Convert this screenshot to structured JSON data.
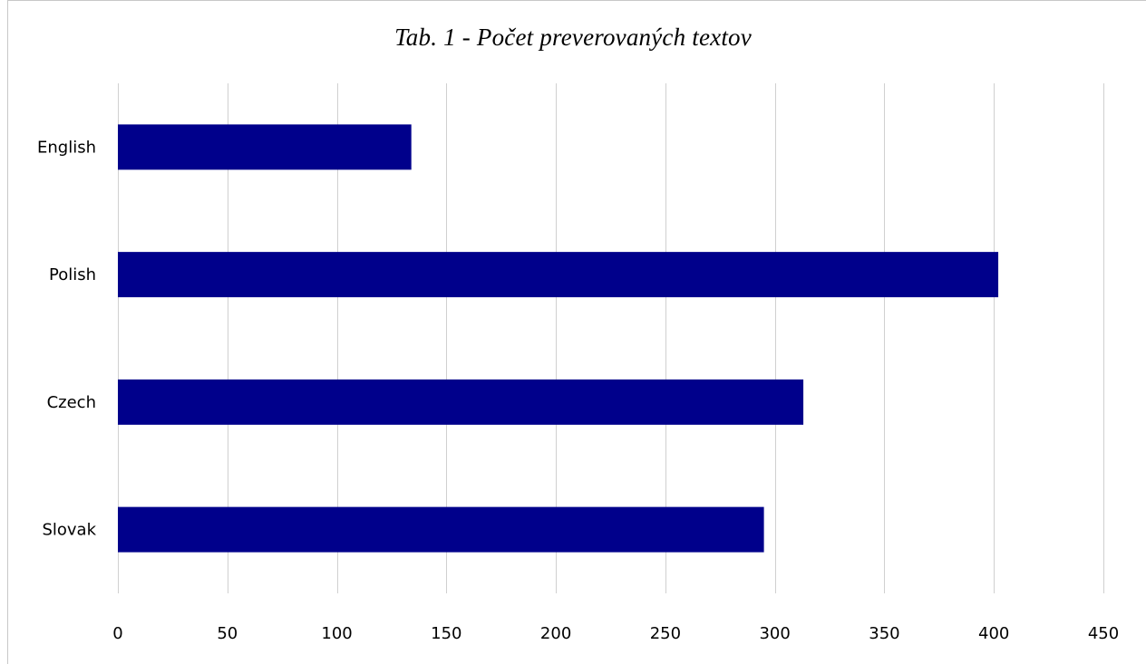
{
  "chart_data": {
    "type": "bar",
    "orientation": "horizontal",
    "title": "Tab. 1 - Počet preverovaných textov",
    "categories": [
      "English",
      "Polish",
      "Czech",
      "Slovak"
    ],
    "values": [
      134,
      402,
      313,
      295
    ],
    "xlabel": "",
    "ylabel": "",
    "xlim": [
      0,
      450
    ],
    "x_ticks": [
      "0",
      "50",
      "100",
      "150",
      "200",
      "250",
      "300",
      "350",
      "400",
      "450"
    ],
    "grid": "vertical",
    "legend": "none",
    "bar_color": "#00008b"
  }
}
